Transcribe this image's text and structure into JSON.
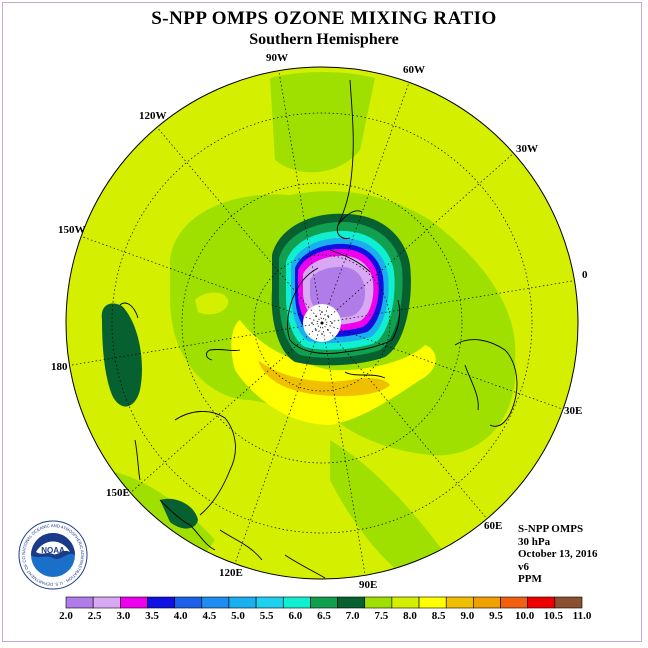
{
  "title": "S-NPP OMPS OZONE MIXING RATIO",
  "subtitle": "Southern Hemisphere",
  "longitude_labels": [
    "90W",
    "60W",
    "30W",
    "0",
    "30E",
    "60E",
    "90E",
    "120E",
    "150E",
    "180",
    "150W",
    "120W"
  ],
  "info": {
    "instrument": "S-NPP OMPS",
    "level": "30 hPa",
    "date": "October 13, 2016",
    "version": "v6",
    "units": "PPM"
  },
  "logo": {
    "text": "NOAA",
    "ring_text": "NATIONAL OCEANIC AND ATMOSPHERIC ADMINISTRATION · U.S. DEPARTMENT OF COMMERCE"
  },
  "colorbar": {
    "ticks": [
      "2.0",
      "2.5",
      "3.0",
      "3.5",
      "4.0",
      "4.5",
      "5.0",
      "5.5",
      "6.0",
      "6.5",
      "7.0",
      "7.5",
      "8.0",
      "8.5",
      "9.0",
      "9.5",
      "10.0",
      "10.5",
      "11.0"
    ],
    "colors": [
      "#b07ce8",
      "#d9a8f5",
      "#ee00ee",
      "#1010e0",
      "#1a60e8",
      "#1e8cf0",
      "#1ab0f0",
      "#20d0f0",
      "#10f0d0",
      "#10a050",
      "#066030",
      "#a0e000",
      "#d4f000",
      "#ffff00",
      "#f0c000",
      "#f0a000",
      "#f06010",
      "#ee0000",
      "#8a5030"
    ]
  }
}
